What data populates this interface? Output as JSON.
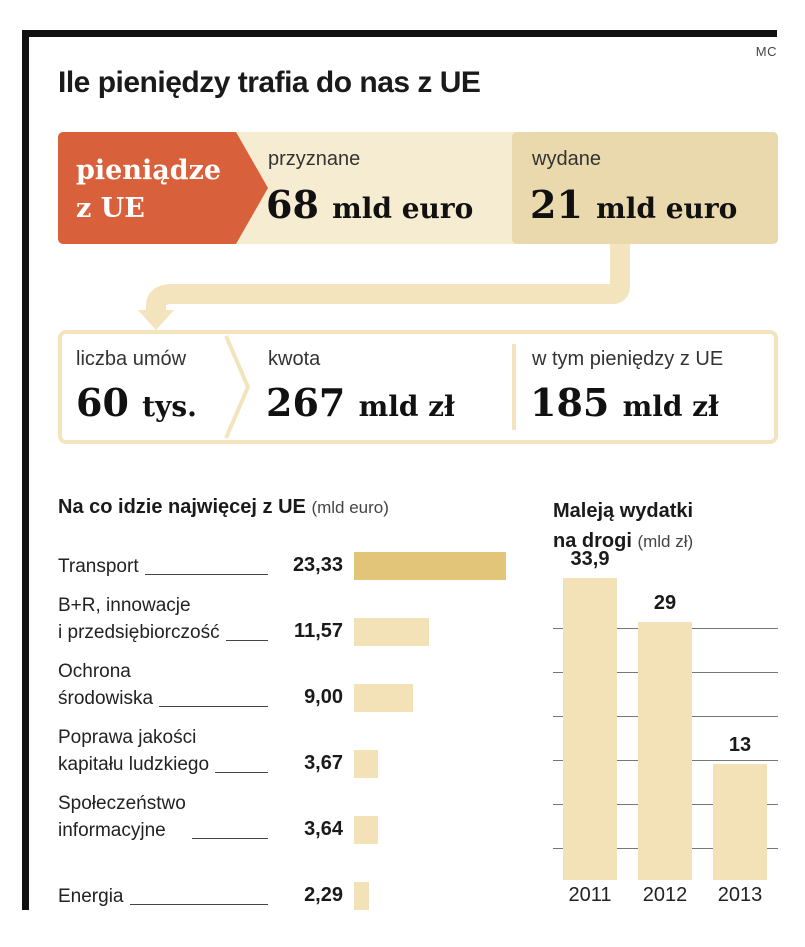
{
  "author": "MC",
  "title": "Ile pieniędzy trafia do nas z UE",
  "source_label_line1": "pieniądze",
  "source_label_line2": "z UE",
  "granted": {
    "label": "przyznane",
    "value": "68",
    "unit": "mld euro"
  },
  "spent": {
    "label": "wydane",
    "value": "21",
    "unit": "mld euro"
  },
  "contracts": {
    "label": "liczba umów",
    "value": "60",
    "unit": "tys."
  },
  "amount": {
    "label": "kwota",
    "value": "267",
    "unit": "mld zł"
  },
  "eu_money": {
    "label": "w tym pieniędzy z UE",
    "value": "185",
    "unit": "mld zł"
  },
  "colors": {
    "accent": "#d8603a",
    "band": "#f6ecd2",
    "band_dark": "#ead9ac",
    "bar_main": "#e3c57a",
    "bar": "#f3e1b8"
  },
  "chart_data": [
    {
      "type": "bar",
      "orientation": "horizontal",
      "title": "Na co idzie najwięcej z UE",
      "unit_label": "(mld euro)",
      "categories": [
        [
          "Transport"
        ],
        [
          "B+R, innowacje",
          "i przedsiębiorczość"
        ],
        [
          "Ochrona",
          "środowiska"
        ],
        [
          "Poprawa jakości",
          "kapitału ludzkiego"
        ],
        [
          "Społeczeństwo",
          "informacyjne"
        ],
        [
          "Energia"
        ]
      ],
      "values": [
        23.33,
        11.57,
        9.0,
        3.67,
        3.64,
        2.29
      ],
      "value_labels": [
        "23,33",
        "11,57",
        "9,00",
        "3,67",
        "3,64",
        "2,29"
      ]
    },
    {
      "type": "bar",
      "orientation": "vertical",
      "title_line1": "Maleją wydatki",
      "title_line2": "na drogi",
      "unit_label": "(mld zł)",
      "categories": [
        "2011",
        "2012",
        "2013"
      ],
      "values": [
        33.9,
        29,
        13
      ],
      "value_labels": [
        "33,9",
        "29",
        "13"
      ],
      "ylim": [
        0,
        35
      ]
    }
  ]
}
